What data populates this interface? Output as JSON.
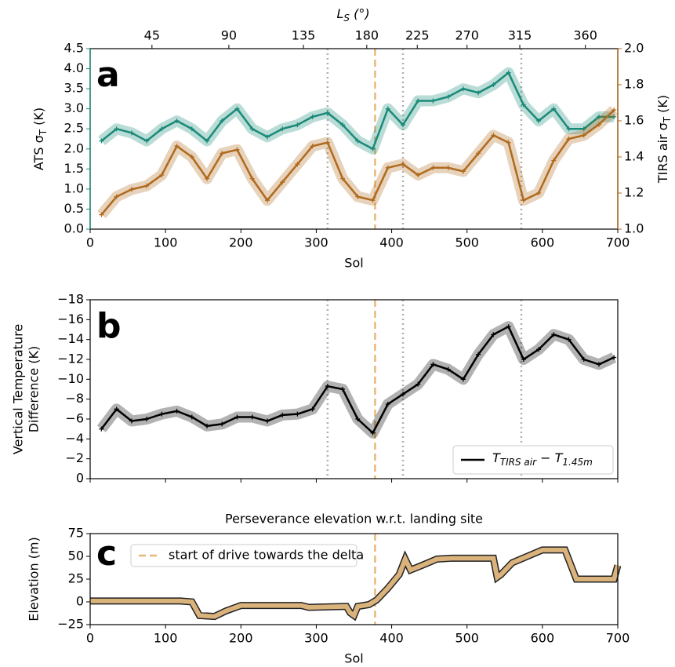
{
  "chart_data": [
    {
      "type": "line",
      "panel_label": "a",
      "xlabel": "Sol",
      "x2label": [
        "L",
        "S",
        " (°)"
      ],
      "ylabel": [
        "ATS σ",
        "T",
        " (K)"
      ],
      "y2label": [
        "TIRS air σ",
        "T",
        " (K)"
      ],
      "xlim": [
        0,
        700
      ],
      "xticks": [
        0,
        100,
        200,
        300,
        400,
        500,
        600,
        700
      ],
      "x2ticks": [
        {
          "value": 82,
          "label": "45"
        },
        {
          "value": 184,
          "label": "90"
        },
        {
          "value": 283,
          "label": "135"
        },
        {
          "value": 367,
          "label": "180"
        },
        {
          "value": 434,
          "label": "225"
        },
        {
          "value": 500,
          "label": "270"
        },
        {
          "value": 570,
          "label": "315"
        },
        {
          "value": 657,
          "label": "360"
        }
      ],
      "ylim": [
        0,
        4.5
      ],
      "yticks": [
        {
          "value": 0,
          "label": "0.0"
        },
        {
          "value": 0.5,
          "label": "0.5"
        },
        {
          "value": 1,
          "label": "1.0"
        },
        {
          "value": 1.5,
          "label": "1.5"
        },
        {
          "value": 2,
          "label": "2.0"
        },
        {
          "value": 2.5,
          "label": "2.5"
        },
        {
          "value": 3,
          "label": "3.0"
        },
        {
          "value": 3.5,
          "label": "3.5"
        },
        {
          "value": 4,
          "label": "4.0"
        },
        {
          "value": 4.5,
          "label": "4.5"
        }
      ],
      "y2lim": [
        1.0,
        2.0
      ],
      "y2ticks": [
        {
          "value": 1,
          "label": "1.0"
        },
        {
          "value": 1.2,
          "label": "1.2"
        },
        {
          "value": 1.4,
          "label": "1.4"
        },
        {
          "value": 1.6,
          "label": "1.6"
        },
        {
          "value": 1.8,
          "label": "1.8"
        },
        {
          "value": 2,
          "label": "2.0"
        }
      ],
      "vlines": [
        {
          "x": 315,
          "color": "#b0b0b0",
          "style": "dotted"
        },
        {
          "x": 378,
          "color": "#e8b878",
          "style": "dashed"
        },
        {
          "x": 415,
          "color": "#b0b0b0",
          "style": "dotted"
        },
        {
          "x": 572,
          "color": "#b0b0b0",
          "style": "dotted"
        }
      ],
      "x": [
        15,
        35,
        55,
        75,
        95,
        115,
        135,
        155,
        175,
        195,
        215,
        235,
        255,
        275,
        295,
        315,
        335,
        355,
        375,
        395,
        415,
        435,
        455,
        475,
        495,
        515,
        535,
        555,
        575,
        595,
        615,
        635,
        655,
        675,
        695
      ],
      "series": [
        {
          "name": "ATS",
          "color": "#1a8a78",
          "axis": "y",
          "values": [
            2.2,
            2.5,
            2.4,
            2.2,
            2.5,
            2.7,
            2.5,
            2.2,
            2.7,
            3.0,
            2.5,
            2.3,
            2.5,
            2.6,
            2.8,
            2.9,
            2.6,
            2.2,
            2.0,
            3.0,
            2.6,
            3.2,
            3.2,
            3.3,
            3.5,
            3.4,
            3.6,
            3.9,
            3.1,
            2.7,
            3.0,
            2.5,
            2.5,
            2.8,
            2.8
          ]
        },
        {
          "name": "TIRS air",
          "color": "#b06a1e",
          "axis": "y2",
          "values": [
            1.08,
            1.18,
            1.22,
            1.24,
            1.3,
            1.46,
            1.4,
            1.28,
            1.42,
            1.44,
            1.28,
            1.16,
            1.26,
            1.36,
            1.46,
            1.48,
            1.28,
            1.18,
            1.16,
            1.34,
            1.36,
            1.3,
            1.34,
            1.34,
            1.32,
            1.42,
            1.52,
            1.48,
            1.16,
            1.2,
            1.38,
            1.5,
            1.52,
            1.58,
            1.66
          ]
        }
      ]
    },
    {
      "type": "line",
      "panel_label": "b",
      "ylabel": [
        "Vertical Temperature",
        "Difference (K)"
      ],
      "xlim": [
        0,
        700
      ],
      "xticks": [
        0,
        100,
        200,
        300,
        400,
        500,
        600,
        700
      ],
      "ylim": [
        0,
        -18
      ],
      "yticks": [
        0,
        {
          "value": -2,
          "label": "−2"
        },
        {
          "value": -4,
          "label": "−4"
        },
        {
          "value": -6,
          "label": "−6"
        },
        {
          "value": -8,
          "label": "−8"
        },
        {
          "value": -10,
          "label": "−10"
        },
        {
          "value": -12,
          "label": "−12"
        },
        {
          "value": -14,
          "label": "−14"
        },
        {
          "value": -16,
          "label": "−16"
        },
        {
          "value": -18,
          "label": "−18"
        }
      ],
      "legend": "lower right",
      "vlines": [
        {
          "x": 315,
          "color": "#b0b0b0",
          "style": "dotted"
        },
        {
          "x": 378,
          "color": "#e8b878",
          "style": "dashed"
        },
        {
          "x": 415,
          "color": "#b0b0b0",
          "style": "dotted"
        },
        {
          "x": 572,
          "color": "#b0b0b0",
          "style": "dotted"
        }
      ],
      "x": [
        15,
        35,
        55,
        75,
        95,
        115,
        135,
        155,
        175,
        195,
        215,
        235,
        255,
        275,
        295,
        315,
        335,
        355,
        375,
        395,
        415,
        435,
        455,
        475,
        495,
        515,
        535,
        555,
        575,
        595,
        615,
        635,
        655,
        675,
        695
      ],
      "series": [
        {
          "name": [
            "T",
            "TIRS air",
            " − T",
            "1.45m"
          ],
          "color": "#000000",
          "axis": "y",
          "values": [
            -5,
            -7,
            -5.8,
            -6,
            -6.5,
            -6.8,
            -6.2,
            -5.3,
            -5.5,
            -6.2,
            -6.2,
            -5.8,
            -6.4,
            -6.5,
            -7,
            -9.3,
            -9,
            -6,
            -4.6,
            -7.5,
            -8.5,
            -9.5,
            -11.5,
            -11,
            -10,
            -12.5,
            -14.5,
            -15.3,
            -12,
            -13,
            -14.5,
            -14,
            -12,
            -11.5,
            -12.2
          ]
        }
      ]
    },
    {
      "type": "line",
      "panel_label": "c",
      "title": "Perseverance elevation w.r.t. landing site",
      "xlabel": "Sol",
      "ylabel": [
        "Elevation (m)"
      ],
      "xlim": [
        0,
        700
      ],
      "xticks": [
        0,
        100,
        200,
        300,
        400,
        500,
        600,
        700
      ],
      "ylim": [
        -25,
        75
      ],
      "yticks": [
        {
          "value": -25,
          "label": "−25"
        },
        0,
        25,
        50,
        75
      ],
      "legend": "upper left",
      "vlines": [
        {
          "x": 378,
          "color": "#e8b878",
          "style": "dashed",
          "label": "start of drive towards the delta"
        }
      ],
      "x": [
        0,
        120,
        135,
        145,
        165,
        180,
        200,
        280,
        290,
        340,
        345,
        350,
        355,
        370,
        380,
        395,
        410,
        418,
        425,
        440,
        460,
        480,
        500,
        535,
        540,
        545,
        560,
        600,
        630,
        645,
        650,
        695,
        700
      ],
      "series": [
        {
          "name": "elevation",
          "color": "#d9b27c",
          "edgecolor": "#222222",
          "axis": "y",
          "values": [
            1,
            1,
            0,
            -15,
            -16,
            -10,
            -4,
            -4,
            -6,
            -5,
            -12,
            -15,
            -5,
            -3,
            2,
            15,
            30,
            47,
            35,
            40,
            47,
            48,
            48,
            48,
            27,
            30,
            43,
            57,
            57,
            25,
            25,
            25,
            40
          ]
        }
      ]
    }
  ]
}
